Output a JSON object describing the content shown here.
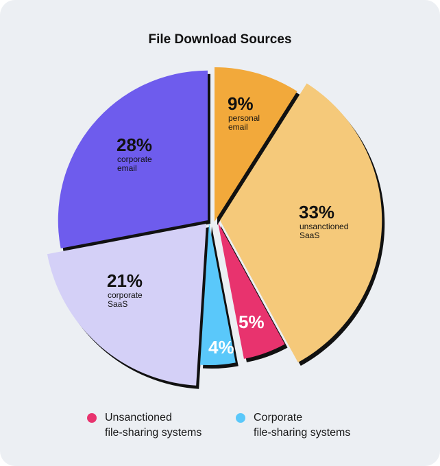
{
  "chart_data": {
    "type": "pie",
    "title": "File Download Sources",
    "slices": [
      {
        "value": 9,
        "pct_label": "9%",
        "label_lines": [
          "personal",
          "email"
        ],
        "color": "#f2a93b",
        "text_color": "#111111"
      },
      {
        "value": 33,
        "pct_label": "33%",
        "label_lines": [
          "unsanctioned",
          "SaaS"
        ],
        "color": "#f5c97a",
        "text_color": "#111111"
      },
      {
        "value": 5,
        "pct_label": "5%",
        "label_lines": [],
        "color": "#e8336e",
        "text_color": "#ffffff"
      },
      {
        "value": 4,
        "pct_label": "4%",
        "label_lines": [],
        "color": "#5ac8fa",
        "text_color": "#ffffff"
      },
      {
        "value": 21,
        "pct_label": "21%",
        "label_lines": [
          "corporate",
          "SaaS"
        ],
        "color": "#d4d0f7",
        "text_color": "#111111"
      },
      {
        "value": 28,
        "pct_label": "28%",
        "label_lines": [
          "corporate",
          "email"
        ],
        "color": "#6e5ced",
        "text_color": "#111111"
      }
    ],
    "legend": [
      {
        "label_line1": "Unsanctioned",
        "label_line2": "file-sharing systems",
        "color": "#e8336e"
      },
      {
        "label_line1": "Corporate",
        "label_line2": "file-sharing systems",
        "color": "#5ac8fa"
      }
    ]
  }
}
